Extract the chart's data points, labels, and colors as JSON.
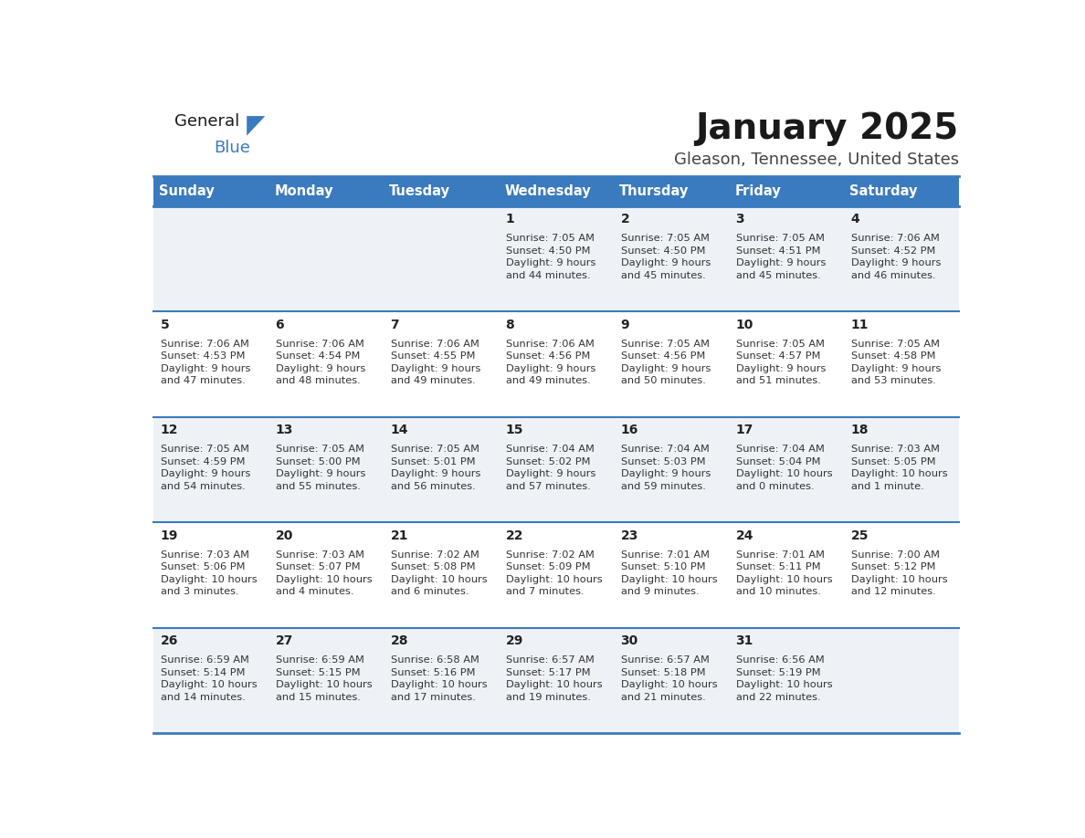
{
  "title": "January 2025",
  "subtitle": "Gleason, Tennessee, United States",
  "header_color": "#3a7abf",
  "header_text_color": "#ffffff",
  "cell_bg_even": "#eef2f7",
  "cell_bg_odd": "#ffffff",
  "border_color": "#3a7abf",
  "text_color": "#333333",
  "days_of_week": [
    "Sunday",
    "Monday",
    "Tuesday",
    "Wednesday",
    "Thursday",
    "Friday",
    "Saturday"
  ],
  "weeks": [
    [
      {
        "day": "",
        "sunrise": "",
        "sunset": "",
        "daylight": ""
      },
      {
        "day": "",
        "sunrise": "",
        "sunset": "",
        "daylight": ""
      },
      {
        "day": "",
        "sunrise": "",
        "sunset": "",
        "daylight": ""
      },
      {
        "day": "1",
        "sunrise": "7:05 AM",
        "sunset": "4:50 PM",
        "daylight": "9 hours\nand 44 minutes."
      },
      {
        "day": "2",
        "sunrise": "7:05 AM",
        "sunset": "4:50 PM",
        "daylight": "9 hours\nand 45 minutes."
      },
      {
        "day": "3",
        "sunrise": "7:05 AM",
        "sunset": "4:51 PM",
        "daylight": "9 hours\nand 45 minutes."
      },
      {
        "day": "4",
        "sunrise": "7:06 AM",
        "sunset": "4:52 PM",
        "daylight": "9 hours\nand 46 minutes."
      }
    ],
    [
      {
        "day": "5",
        "sunrise": "7:06 AM",
        "sunset": "4:53 PM",
        "daylight": "9 hours\nand 47 minutes."
      },
      {
        "day": "6",
        "sunrise": "7:06 AM",
        "sunset": "4:54 PM",
        "daylight": "9 hours\nand 48 minutes."
      },
      {
        "day": "7",
        "sunrise": "7:06 AM",
        "sunset": "4:55 PM",
        "daylight": "9 hours\nand 49 minutes."
      },
      {
        "day": "8",
        "sunrise": "7:06 AM",
        "sunset": "4:56 PM",
        "daylight": "9 hours\nand 49 minutes."
      },
      {
        "day": "9",
        "sunrise": "7:05 AM",
        "sunset": "4:56 PM",
        "daylight": "9 hours\nand 50 minutes."
      },
      {
        "day": "10",
        "sunrise": "7:05 AM",
        "sunset": "4:57 PM",
        "daylight": "9 hours\nand 51 minutes."
      },
      {
        "day": "11",
        "sunrise": "7:05 AM",
        "sunset": "4:58 PM",
        "daylight": "9 hours\nand 53 minutes."
      }
    ],
    [
      {
        "day": "12",
        "sunrise": "7:05 AM",
        "sunset": "4:59 PM",
        "daylight": "9 hours\nand 54 minutes."
      },
      {
        "day": "13",
        "sunrise": "7:05 AM",
        "sunset": "5:00 PM",
        "daylight": "9 hours\nand 55 minutes."
      },
      {
        "day": "14",
        "sunrise": "7:05 AM",
        "sunset": "5:01 PM",
        "daylight": "9 hours\nand 56 minutes."
      },
      {
        "day": "15",
        "sunrise": "7:04 AM",
        "sunset": "5:02 PM",
        "daylight": "9 hours\nand 57 minutes."
      },
      {
        "day": "16",
        "sunrise": "7:04 AM",
        "sunset": "5:03 PM",
        "daylight": "9 hours\nand 59 minutes."
      },
      {
        "day": "17",
        "sunrise": "7:04 AM",
        "sunset": "5:04 PM",
        "daylight": "10 hours\nand 0 minutes."
      },
      {
        "day": "18",
        "sunrise": "7:03 AM",
        "sunset": "5:05 PM",
        "daylight": "10 hours\nand 1 minute."
      }
    ],
    [
      {
        "day": "19",
        "sunrise": "7:03 AM",
        "sunset": "5:06 PM",
        "daylight": "10 hours\nand 3 minutes."
      },
      {
        "day": "20",
        "sunrise": "7:03 AM",
        "sunset": "5:07 PM",
        "daylight": "10 hours\nand 4 minutes."
      },
      {
        "day": "21",
        "sunrise": "7:02 AM",
        "sunset": "5:08 PM",
        "daylight": "10 hours\nand 6 minutes."
      },
      {
        "day": "22",
        "sunrise": "7:02 AM",
        "sunset": "5:09 PM",
        "daylight": "10 hours\nand 7 minutes."
      },
      {
        "day": "23",
        "sunrise": "7:01 AM",
        "sunset": "5:10 PM",
        "daylight": "10 hours\nand 9 minutes."
      },
      {
        "day": "24",
        "sunrise": "7:01 AM",
        "sunset": "5:11 PM",
        "daylight": "10 hours\nand 10 minutes."
      },
      {
        "day": "25",
        "sunrise": "7:00 AM",
        "sunset": "5:12 PM",
        "daylight": "10 hours\nand 12 minutes."
      }
    ],
    [
      {
        "day": "26",
        "sunrise": "6:59 AM",
        "sunset": "5:14 PM",
        "daylight": "10 hours\nand 14 minutes."
      },
      {
        "day": "27",
        "sunrise": "6:59 AM",
        "sunset": "5:15 PM",
        "daylight": "10 hours\nand 15 minutes."
      },
      {
        "day": "28",
        "sunrise": "6:58 AM",
        "sunset": "5:16 PM",
        "daylight": "10 hours\nand 17 minutes."
      },
      {
        "day": "29",
        "sunrise": "6:57 AM",
        "sunset": "5:17 PM",
        "daylight": "10 hours\nand 19 minutes."
      },
      {
        "day": "30",
        "sunrise": "6:57 AM",
        "sunset": "5:18 PM",
        "daylight": "10 hours\nand 21 minutes."
      },
      {
        "day": "31",
        "sunrise": "6:56 AM",
        "sunset": "5:19 PM",
        "daylight": "10 hours\nand 22 minutes."
      },
      {
        "day": "",
        "sunrise": "",
        "sunset": "",
        "daylight": ""
      }
    ]
  ]
}
